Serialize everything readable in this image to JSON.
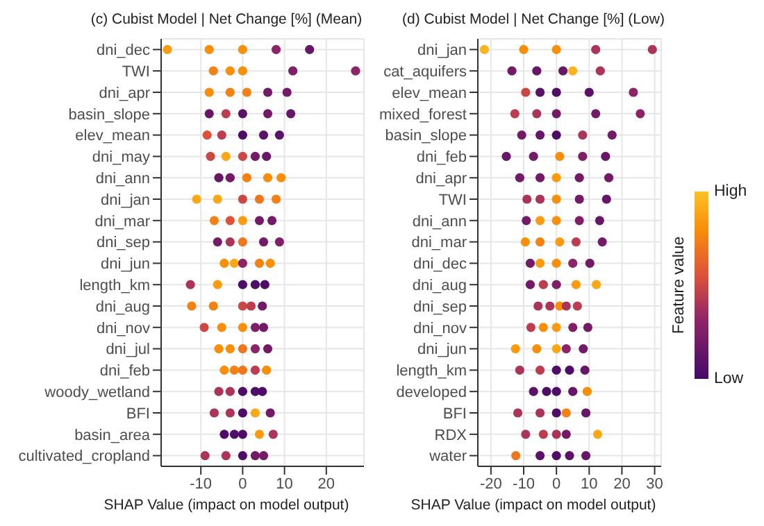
{
  "chart_data": [
    {
      "type": "scatter",
      "title": "(c) Cubist Model | Net Change [%] (Mean)",
      "xlabel": "SHAP Value (impact on model output)",
      "orientation": "horizontal",
      "categories": [
        "dni_dec",
        "TWI",
        "dni_apr",
        "basin_slope",
        "elev_mean",
        "dni_may",
        "dni_ann",
        "dni_jan",
        "dni_mar",
        "dni_sep",
        "dni_jun",
        "length_km",
        "dni_aug",
        "dni_nov",
        "dni_jul",
        "dni_feb",
        "woody_wetland",
        "BFI",
        "basin_area",
        "cultivated_cropland"
      ],
      "xlim": [
        -19.5,
        29
      ],
      "xticks": [
        -10,
        0,
        10,
        20
      ],
      "grid": true,
      "marker": "circle",
      "series": [
        {
          "values": [
            -18,
            -7,
            -8,
            -8,
            -8.5,
            -7.7,
            -5.7,
            -11,
            -6.8,
            -6,
            -4.4,
            -12.5,
            -12.2,
            -9.2,
            -5.7,
            -4.4,
            -5.7,
            -6.8,
            -4.4,
            -9
          ],
          "colors": [
            "#fa9b10",
            "#f38213",
            "#f98e09",
            "#671767",
            "#dd513a",
            "#cc4744",
            "#671767",
            "#fba817",
            "#f38213",
            "#731b67",
            "#f98e09",
            "#ab3459",
            "#f38213",
            "#cc4744",
            "#f98e09",
            "#f98e09",
            "#ab3459",
            "#ab3459",
            "#4e0e68",
            "#ab3459"
          ]
        },
        {
          "values": [
            -8,
            -3,
            -3,
            -4,
            -5,
            -4,
            -3,
            -6,
            -3,
            -3,
            -2,
            -6,
            -7,
            -5,
            -3,
            -2,
            -3,
            -3,
            -2,
            -4
          ],
          "colors": [
            "#f98e09",
            "#f98e09",
            "#f38213",
            "#bb3d4f",
            "#bb3d4f",
            "#fba817",
            "#731b67",
            "#fba817",
            "#dd513a",
            "#ab3459",
            "#fba817",
            "#fa9b10",
            "#f38213",
            "#f98e09",
            "#f98e09",
            "#f38213",
            "#ab3459",
            "#ab3459",
            "#4e0e68",
            "#ab3459"
          ]
        },
        {
          "values": [
            0,
            0,
            1,
            0,
            0,
            0,
            1,
            0,
            0,
            0,
            0,
            0,
            0,
            0,
            0,
            0,
            0,
            0,
            0,
            0
          ],
          "colors": [
            "#f98e09",
            "#f98e09",
            "#f38213",
            "#5a1368",
            "#4e0e68",
            "#cc4744",
            "#f38213",
            "#cc4744",
            "#fa9b10",
            "#ee761d",
            "#8c2467",
            "#4e0e68",
            "#cc4744",
            "#f98e09",
            "#ee761d",
            "#ee761d",
            "#4e0e68",
            "#4e0e68",
            "#4e0e68",
            "#4e0e68"
          ]
        },
        {
          "values": [
            8,
            12,
            6,
            6,
            5,
            3,
            6,
            4,
            4,
            5,
            4,
            3,
            2,
            3,
            3,
            3,
            3,
            3,
            4,
            3
          ],
          "colors": [
            "#8c2467",
            "#7f1f67",
            "#731b67",
            "#731b67",
            "#5a1368",
            "#731b67",
            "#f98e09",
            "#ee761d",
            "#731b67",
            "#731b67",
            "#f38213",
            "#4e0e68",
            "#bb3d4f",
            "#7f1f67",
            "#8c2467",
            "#bb3d4f",
            "#4e0e68",
            "#fba817",
            "#fa9b10",
            "#731b67"
          ]
        },
        {
          "values": [
            16,
            27,
            10.6,
            11.5,
            8.8,
            5.7,
            9.2,
            8,
            7,
            8.8,
            6.6,
            5.3,
            4.7,
            5,
            6,
            5.7,
            4.7,
            6.6,
            7.3,
            5
          ],
          "colors": [
            "#671767",
            "#8c2467",
            "#731b67",
            "#671767",
            "#5a1368",
            "#671767",
            "#f98e09",
            "#f38213",
            "#731b67",
            "#7f1f67",
            "#f98e09",
            "#4e0e68",
            "#731b67",
            "#731b67",
            "#731b67",
            "#f98e09",
            "#4e0e68",
            "#731b67",
            "#ab3459",
            "#731b67"
          ]
        }
      ]
    },
    {
      "type": "scatter",
      "title": "(d) Cubist Model | Net Change [%] (Low)",
      "xlabel": "SHAP Value (impact on model output)",
      "orientation": "horizontal",
      "categories": [
        "dni_jan",
        "cat_aquifers",
        "elev_mean",
        "mixed_forest",
        "basin_slope",
        "dni_feb",
        "dni_apr",
        "TWI",
        "dni_ann",
        "dni_mar",
        "dni_dec",
        "dni_aug",
        "dni_sep",
        "dni_nov",
        "dni_jun",
        "length_km",
        "developed",
        "BFI",
        "RDX",
        "water"
      ],
      "xlim": [
        -24,
        32
      ],
      "xticks": [
        -20,
        -10,
        0,
        10,
        20,
        30
      ],
      "grid": true,
      "marker": "circle",
      "clim": [
        0,
        1
      ],
      "clabel": "Feature value",
      "cticks": [
        {
          "value": 0,
          "label": "Low"
        },
        {
          "value": 1,
          "label": "High"
        }
      ],
      "series": [
        {
          "values": [
            -22,
            -13.6,
            -9.4,
            -12.7,
            -10.6,
            -15.3,
            -11.2,
            -9,
            -9.2,
            -9.5,
            -8,
            -8,
            -5.6,
            -7.8,
            -12.5,
            -11.2,
            -7,
            -11.8,
            -9.4,
            -12.4
          ],
          "colors": [
            "#fbb41e",
            "#731b67",
            "#cc4744",
            "#bb3d4f",
            "#731b67",
            "#671767",
            "#731b67",
            "#ab3459",
            "#731b67",
            "#f98e09",
            "#731b67",
            "#731b67",
            "#ab3459",
            "#bb3d4f",
            "#fa9b10",
            "#ab3459",
            "#5a1368",
            "#ab3459",
            "#ab3459",
            "#ee761d"
          ]
        },
        {
          "values": [
            -10,
            -6,
            -5,
            -6,
            -5,
            -7,
            -5,
            -5,
            -5,
            -5,
            -5,
            -4,
            -2,
            -4,
            -6,
            -5,
            -3,
            -5,
            -4,
            -5
          ],
          "colors": [
            "#f98e09",
            "#671767",
            "#5a1368",
            "#ab3459",
            "#671767",
            "#731b67",
            "#731b67",
            "#ab3459",
            "#fa9b10",
            "#f38213",
            "#fa9b10",
            "#bb3d4f",
            "#ab3459",
            "#f98e09",
            "#f98e09",
            "#bb3d4f",
            "#4e0e68",
            "#ab3459",
            "#bb3d4f",
            "#5a1368"
          ]
        },
        {
          "values": [
            0,
            2,
            0,
            0,
            0,
            1,
            0,
            0,
            0,
            1,
            0,
            0,
            1,
            0,
            0,
            0,
            0,
            0,
            0,
            0
          ],
          "colors": [
            "#f98e09",
            "#671767",
            "#4e0e68",
            "#731b67",
            "#4e0e68",
            "#f98e09",
            "#fa9b10",
            "#f98e09",
            "#f98e09",
            "#fa9b10",
            "#f98e09",
            "#7f1f67",
            "#f98e09",
            "#fa9b10",
            "#fba817",
            "#4e0e68",
            "#4e0e68",
            "#4e0e68",
            "#ab3459",
            "#4e0e68"
          ]
        },
        {
          "values": [
            12,
            5,
            10,
            12,
            8,
            8,
            7,
            7,
            7,
            6,
            5,
            6,
            3,
            5,
            3,
            4,
            5,
            3,
            3,
            4
          ],
          "colors": [
            "#ab3459",
            "#fbb41e",
            "#5a1368",
            "#731b67",
            "#ab3459",
            "#7f1f67",
            "#731b67",
            "#731b67",
            "#7f1f67",
            "#bb3d4f",
            "#8c2467",
            "#fa9b10",
            "#ab3459",
            "#7f1f67",
            "#8c2467",
            "#4e0e68",
            "#671767",
            "#f38213",
            "#731b67",
            "#5a1368"
          ]
        },
        {
          "values": [
            29.3,
            13.4,
            23.5,
            25.6,
            17,
            15,
            16,
            15.3,
            13.2,
            14,
            10.2,
            12.2,
            6.4,
            9.6,
            8.2,
            8.7,
            9.4,
            9,
            12.6,
            9
          ],
          "colors": [
            "#ab3459",
            "#ab3459",
            "#8c2467",
            "#8c2467",
            "#731b67",
            "#671767",
            "#731b67",
            "#671767",
            "#671767",
            "#731b67",
            "#731b67",
            "#fba817",
            "#bb3d4f",
            "#731b67",
            "#731b67",
            "#671767",
            "#f98e09",
            "#671767",
            "#fba817",
            "#671767"
          ]
        }
      ]
    }
  ]
}
